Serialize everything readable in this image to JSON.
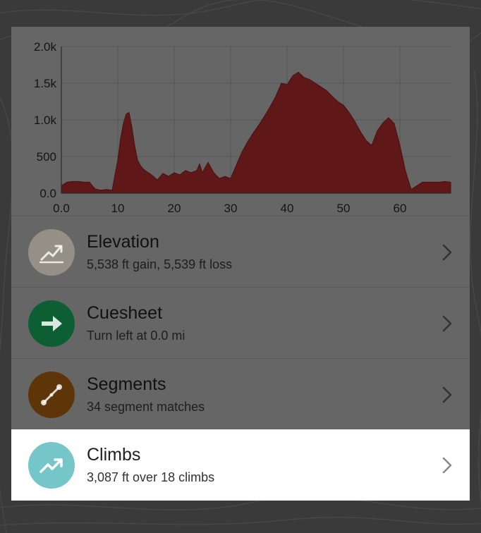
{
  "colors": {
    "background": "#3a3a3a",
    "panel": "#666666",
    "elevation_fill": "#5f1717",
    "elevation_circle": "#959086",
    "cuesheet_circle": "#0d5f33",
    "segments_circle": "#5e3509",
    "climbs_circle": "#74c6c9"
  },
  "chart_data": {
    "type": "area",
    "title": "",
    "xlabel": "",
    "ylabel": "",
    "xlim": [
      0,
      69
    ],
    "ylim": [
      0,
      2000
    ],
    "x_ticks": [
      "0.0",
      "10",
      "20",
      "30",
      "40",
      "50",
      "60"
    ],
    "y_ticks": [
      "0.0",
      "500",
      "1.0k",
      "1.5k",
      "2.0k"
    ],
    "grid": true,
    "x": [
      0,
      1,
      2,
      3,
      4,
      5,
      5.5,
      6,
      7,
      8,
      9,
      9.5,
      10,
      10.5,
      11,
      11.5,
      12,
      12.5,
      13,
      13.5,
      14,
      14.5,
      15,
      16,
      17,
      18,
      19,
      20,
      21,
      22,
      23,
      24,
      24.5,
      25,
      26,
      27,
      28,
      29,
      30,
      31,
      32,
      33,
      34,
      35,
      36,
      37,
      38,
      39,
      40,
      41,
      42,
      43,
      44,
      45,
      46,
      47,
      48,
      49,
      50,
      51,
      52,
      53,
      54,
      55,
      56,
      57,
      58,
      59,
      60,
      61,
      62,
      63,
      64,
      65,
      66,
      67,
      68,
      69
    ],
    "elevation": [
      100,
      150,
      160,
      160,
      150,
      150,
      100,
      60,
      40,
      50,
      40,
      250,
      450,
      750,
      950,
      1080,
      1100,
      900,
      650,
      450,
      380,
      330,
      300,
      250,
      180,
      270,
      230,
      280,
      250,
      310,
      280,
      310,
      400,
      280,
      420,
      280,
      200,
      230,
      200,
      380,
      560,
      700,
      820,
      930,
      1050,
      1180,
      1320,
      1500,
      1480,
      1600,
      1650,
      1580,
      1550,
      1500,
      1450,
      1400,
      1320,
      1250,
      1200,
      1100,
      980,
      840,
      720,
      650,
      850,
      960,
      1030,
      950,
      650,
      300,
      50,
      100,
      150,
      150,
      150,
      150,
      160,
      150
    ]
  },
  "rows": [
    {
      "title": "Elevation",
      "subtitle": "5,538 ft gain, 5,539 ft loss",
      "icon": "trend-line-icon"
    },
    {
      "title": "Cuesheet",
      "subtitle": "Turn left at 0.0 mi",
      "icon": "arrow-right-icon"
    },
    {
      "title": "Segments",
      "subtitle": "34 segment matches",
      "icon": "segment-icon"
    },
    {
      "title": "Climbs",
      "subtitle": "3,087 ft over 18 climbs",
      "icon": "trending-up-icon"
    }
  ]
}
